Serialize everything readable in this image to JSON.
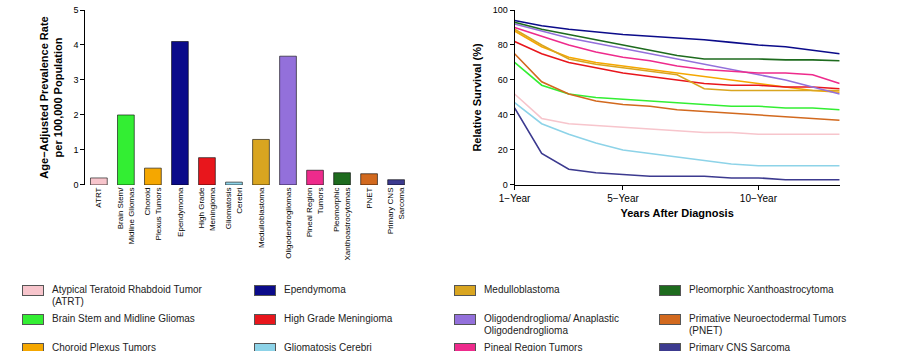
{
  "chart_data": [
    {
      "type": "bar",
      "y_label": [
        "Age−Adjusted Prevalence Rate",
        "per 100,000 Population"
      ],
      "categories": [
        "ATRT",
        "Brain Stem/ Midline Gliomas",
        "Choroid Plexus Tumors",
        "Ependymoma",
        "High Grade Meningioma",
        "Gliomatosis Cerebri",
        "Medulloblastoma",
        "Oligodendrogliomas",
        "Pineal Region Tumors",
        "Pleomorphic Xanthoastrocytomas",
        "PNET",
        "Primary CNS Sarcoma"
      ],
      "values": [
        0.2,
        2.0,
        0.48,
        4.1,
        0.78,
        0.08,
        1.3,
        3.68,
        0.42,
        0.35,
        0.32,
        0.15
      ],
      "colors": [
        "#f7c5cc",
        "#33ee33",
        "#f5a700",
        "#0b0b8a",
        "#e8161c",
        "#8dd3e8",
        "#d9a520",
        "#9370db",
        "#ee2b8c",
        "#1e6b1e",
        "#d2691e",
        "#3c3a8f"
      ],
      "ylim": [
        0,
        5
      ],
      "yticks": [
        0,
        1,
        2,
        3,
        4,
        5
      ],
      "grid": false
    },
    {
      "type": "line",
      "x_label": "Years After Diagnosis",
      "y_label": "Relative Survival (%)",
      "x": [
        1,
        2,
        3,
        4,
        5,
        6,
        7,
        8,
        9,
        10,
        11,
        12,
        13
      ],
      "xlim": [
        1,
        13
      ],
      "xticks": [
        {
          "value": 1,
          "label": "1−Year"
        },
        {
          "value": 5,
          "label": "5−Year"
        },
        {
          "value": 10,
          "label": "10−Year"
        }
      ],
      "ylim": [
        0,
        100
      ],
      "yticks": [
        0,
        20,
        40,
        60,
        80,
        100
      ],
      "grid": false,
      "legend": "bottom",
      "series": [
        {
          "name": "Atypical Teratoid Rhabdoid Tumor (ATRT)",
          "color": "#f7c5cc",
          "values": [
            52,
            38,
            35,
            34,
            33,
            32,
            31,
            30,
            30,
            29,
            29,
            29,
            29
          ]
        },
        {
          "name": "Brain Stem and Midline Gliomas",
          "color": "#33ee33",
          "values": [
            70,
            57,
            52,
            50,
            49,
            48,
            47,
            46,
            45,
            45,
            44,
            44,
            43
          ]
        },
        {
          "name": "Choroid Plexus Tumors",
          "color": "#f5a700",
          "values": [
            88,
            79,
            73,
            70,
            68,
            66,
            64,
            62,
            60,
            58,
            56,
            54,
            53
          ]
        },
        {
          "name": "Ependymoma",
          "color": "#0b0b8a",
          "values": [
            94,
            91,
            89,
            87.5,
            86,
            85,
            84,
            83,
            81.5,
            80,
            79,
            77,
            75
          ]
        },
        {
          "name": "High Grade Meningioma",
          "color": "#e8161c",
          "values": [
            82,
            75,
            70,
            67,
            64,
            62,
            60,
            58,
            57,
            57,
            56,
            56,
            55
          ]
        },
        {
          "name": "Gliomatosis Cerebri",
          "color": "#8dd3e8",
          "values": [
            47,
            35,
            29,
            24,
            20,
            18,
            16,
            14,
            12,
            11,
            11,
            11,
            11
          ]
        },
        {
          "name": "Medulloblastoma",
          "color": "#d9a520",
          "values": [
            89,
            80,
            72,
            69,
            67,
            65,
            63,
            55,
            54,
            54,
            54,
            54,
            54
          ]
        },
        {
          "name": "Oligodendroglioma/ Anaplastic Oligodendroglioma",
          "color": "#9370db",
          "values": [
            92,
            88,
            84,
            81,
            78,
            75,
            72,
            69,
            66,
            63,
            60,
            56,
            52
          ]
        },
        {
          "name": "Pineal Region Tumors",
          "color": "#ee2b8c",
          "values": [
            90,
            85,
            80,
            76,
            73,
            71,
            68,
            66,
            65,
            64,
            64,
            63,
            58
          ]
        },
        {
          "name": "Pleomorphic Xanthoastrocytoma",
          "color": "#1e6b1e",
          "values": [
            93,
            89,
            86,
            83,
            80,
            77,
            74,
            72,
            72,
            72,
            71.5,
            71.5,
            71
          ]
        },
        {
          "name": "Primative Neuroectodermal Tumors (PNET)",
          "color": "#d2691e",
          "values": [
            75,
            59,
            52,
            48,
            46,
            45,
            43,
            42,
            41,
            40,
            39,
            38,
            37
          ]
        },
        {
          "name": "Primary CNS Sarcoma",
          "color": "#3c3a8f",
          "values": [
            44,
            18,
            9,
            7,
            6,
            5,
            5,
            5,
            4,
            4,
            3,
            3,
            3
          ]
        }
      ]
    }
  ]
}
